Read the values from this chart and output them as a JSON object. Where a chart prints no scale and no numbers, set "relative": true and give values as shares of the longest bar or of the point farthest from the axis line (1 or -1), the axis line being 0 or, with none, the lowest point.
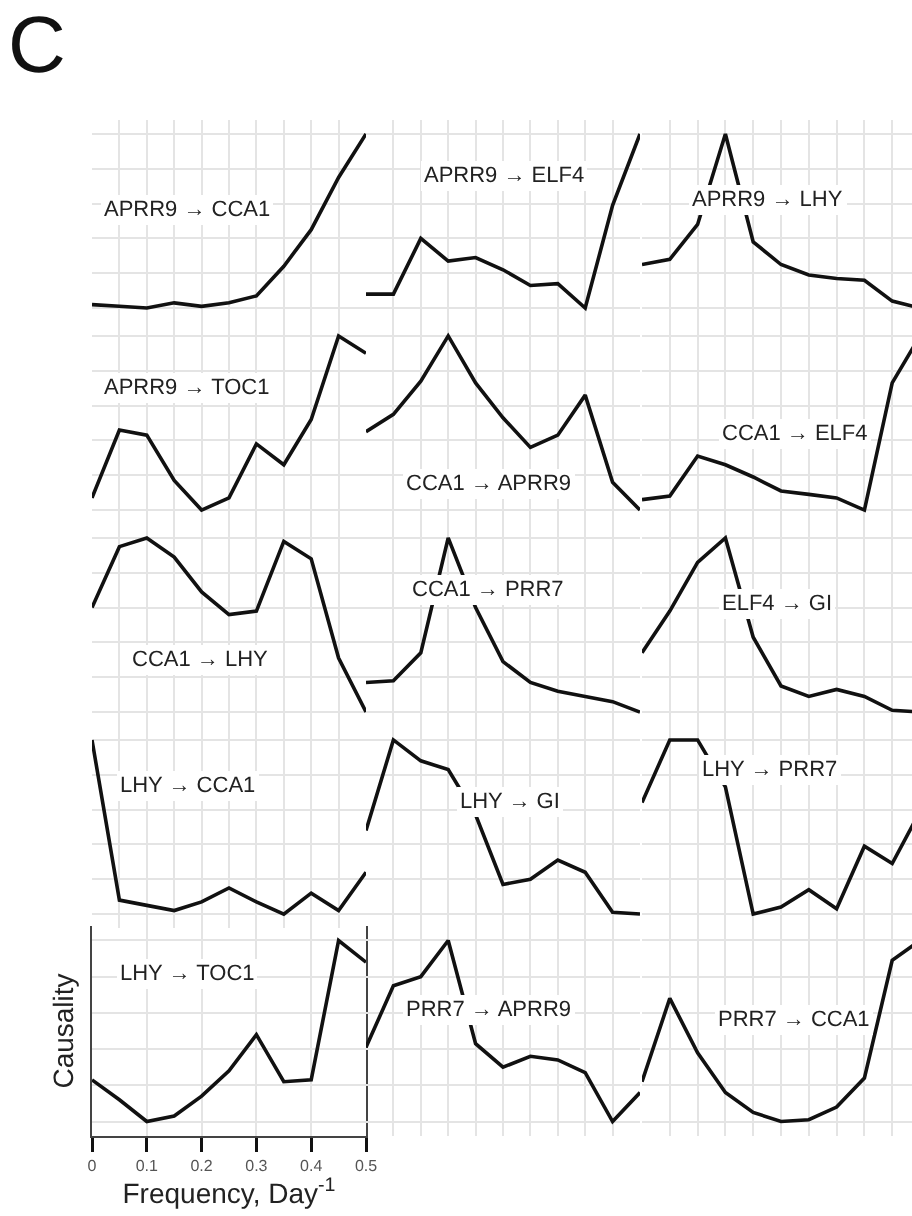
{
  "chart_data": [
    {
      "type": "line",
      "title": "C",
      "annotations": [
        "APRR9 → CCA1"
      ],
      "relative": true,
      "categories": [
        null,
        null,
        null,
        null,
        null,
        null,
        null,
        null,
        null,
        null,
        null
      ],
      "tick_labels": false,
      "grid": true,
      "series": [
        {
          "color": "#111111",
          "values": [
            0.02,
            0.01,
            0,
            0.03,
            0.01,
            0.03,
            0.07,
            0.24,
            0.45,
            0.75,
            1
          ]
        }
      ]
    },
    {
      "type": "line",
      "annotations": [
        "APRR9 → ELF4"
      ],
      "relative": true,
      "categories": [
        null,
        null,
        null,
        null,
        null,
        null,
        null,
        null,
        null,
        null,
        null
      ],
      "tick_labels": false,
      "grid": true,
      "series": [
        {
          "color": "#111111",
          "values": [
            0.08,
            0.08,
            0.4,
            0.27,
            0.29,
            0.22,
            0.13,
            0.14,
            0,
            0.59,
            1
          ]
        }
      ]
    },
    {
      "type": "line",
      "annotations": [
        "APRR9 → LHY"
      ],
      "relative": true,
      "categories": [
        null,
        null,
        null,
        null,
        null,
        null,
        null,
        null,
        null,
        null,
        null
      ],
      "tick_labels": false,
      "grid": true,
      "series": [
        {
          "color": "#111111",
          "values": [
            0.25,
            0.28,
            0.48,
            1,
            0.38,
            0.25,
            0.19,
            0.17,
            0.16,
            0.04,
            0
          ]
        }
      ]
    },
    {
      "type": "line",
      "annotations": [
        "APRR9 → TOC1"
      ],
      "relative": true,
      "categories": [
        null,
        null,
        null,
        null,
        null,
        null,
        null,
        null,
        null,
        null,
        null
      ],
      "tick_labels": false,
      "grid": true,
      "series": [
        {
          "color": "#111111",
          "values": [
            0.07,
            0.46,
            0.43,
            0.17,
            0,
            0.07,
            0.38,
            0.26,
            0.52,
            1,
            0.9
          ]
        }
      ]
    },
    {
      "type": "line",
      "annotations": [
        "CCA1 → APRR9"
      ],
      "relative": true,
      "categories": [
        null,
        null,
        null,
        null,
        null,
        null,
        null,
        null,
        null,
        null,
        null
      ],
      "tick_labels": false,
      "grid": true,
      "series": [
        {
          "color": "#111111",
          "values": [
            0.45,
            0.55,
            0.74,
            1,
            0.73,
            0.53,
            0.36,
            0.43,
            0.66,
            0.16,
            0
          ]
        }
      ]
    },
    {
      "type": "line",
      "annotations": [
        "CCA1 → ELF4"
      ],
      "relative": true,
      "categories": [
        null,
        null,
        null,
        null,
        null,
        null,
        null,
        null,
        null,
        null,
        null
      ],
      "tick_labels": false,
      "grid": true,
      "series": [
        {
          "color": "#111111",
          "values": [
            0.06,
            0.08,
            0.31,
            0.26,
            0.19,
            0.11,
            0.09,
            0.07,
            0,
            0.73,
            1
          ]
        }
      ]
    },
    {
      "type": "line",
      "annotations": [
        "CCA1 → LHY"
      ],
      "relative": true,
      "categories": [
        null,
        null,
        null,
        null,
        null,
        null,
        null,
        null,
        null,
        null,
        null
      ],
      "tick_labels": false,
      "grid": true,
      "series": [
        {
          "color": "#111111",
          "values": [
            0.6,
            0.95,
            1,
            0.89,
            0.69,
            0.56,
            0.58,
            0.98,
            0.88,
            0.31,
            0
          ]
        }
      ]
    },
    {
      "type": "line",
      "annotations": [
        "CCA1 → PRR7"
      ],
      "relative": true,
      "categories": [
        null,
        null,
        null,
        null,
        null,
        null,
        null,
        null,
        null,
        null,
        null
      ],
      "tick_labels": false,
      "grid": true,
      "series": [
        {
          "color": "#111111",
          "values": [
            0.17,
            0.18,
            0.34,
            1,
            0.6,
            0.29,
            0.17,
            0.12,
            0.09,
            0.06,
            0
          ]
        }
      ]
    },
    {
      "type": "line",
      "annotations": [
        "ELF4 → GI"
      ],
      "relative": true,
      "categories": [
        null,
        null,
        null,
        null,
        null,
        null,
        null,
        null,
        null,
        null,
        null
      ],
      "tick_labels": false,
      "grid": true,
      "series": [
        {
          "color": "#111111",
          "values": [
            0.34,
            0.58,
            0.86,
            1,
            0.43,
            0.15,
            0.09,
            0.13,
            0.09,
            0.01,
            0
          ]
        }
      ]
    },
    {
      "type": "line",
      "annotations": [
        "LHY → CCA1"
      ],
      "relative": true,
      "categories": [
        null,
        null,
        null,
        null,
        null,
        null,
        null,
        null,
        null,
        null,
        null
      ],
      "tick_labels": false,
      "grid": true,
      "series": [
        {
          "color": "#111111",
          "values": [
            1,
            0.08,
            0.05,
            0.02,
            0.07,
            0.15,
            0.07,
            0,
            0.12,
            0.02,
            0.24
          ]
        }
      ]
    },
    {
      "type": "line",
      "annotations": [
        "LHY → GI"
      ],
      "relative": true,
      "categories": [
        null,
        null,
        null,
        null,
        null,
        null,
        null,
        null,
        null,
        null,
        null
      ],
      "tick_labels": false,
      "grid": true,
      "series": [
        {
          "color": "#111111",
          "values": [
            0.48,
            1,
            0.88,
            0.83,
            0.57,
            0.17,
            0.2,
            0.31,
            0.24,
            0.01,
            0
          ]
        }
      ]
    },
    {
      "type": "line",
      "annotations": [
        "LHY → PRR7"
      ],
      "relative": true,
      "categories": [
        null,
        null,
        null,
        null,
        null,
        null,
        null,
        null,
        null,
        null,
        null
      ],
      "tick_labels": false,
      "grid": true,
      "series": [
        {
          "color": "#111111",
          "values": [
            0.64,
            1,
            1,
            0.73,
            0,
            0.04,
            0.14,
            0.03,
            0.39,
            0.29,
            0.59
          ]
        }
      ]
    },
    {
      "type": "line",
      "annotations": [
        "LHY → TOC1"
      ],
      "xlabel": "Frequency, Day$^{-1}$",
      "ylabel": "Causality",
      "relative": true,
      "x": [
        0,
        0.05,
        0.1,
        0.15,
        0.2,
        0.25,
        0.3,
        0.35,
        0.4,
        0.45,
        0.5
      ],
      "xlim": [
        0,
        0.5
      ],
      "xticks": [
        0,
        0.1,
        0.2,
        0.3,
        0.4,
        0.5
      ],
      "tick_labels": "x",
      "grid": true,
      "series": [
        {
          "color": "#111111",
          "values": [
            0.23,
            0.12,
            0,
            0.03,
            0.14,
            0.28,
            0.48,
            0.22,
            0.23,
            1,
            0.88
          ]
        }
      ]
    },
    {
      "type": "line",
      "annotations": [
        "PRR7 → APRR9"
      ],
      "relative": true,
      "categories": [
        null,
        null,
        null,
        null,
        null,
        null,
        null,
        null,
        null,
        null,
        null
      ],
      "tick_labels": false,
      "grid": true,
      "series": [
        {
          "color": "#111111",
          "values": [
            0.41,
            0.75,
            0.8,
            1,
            0.43,
            0.3,
            0.36,
            0.34,
            0.27,
            0,
            0.16
          ]
        }
      ]
    },
    {
      "type": "line",
      "annotations": [
        "PRR7 → CCA1"
      ],
      "relative": true,
      "categories": [
        null,
        null,
        null,
        null,
        null,
        null,
        null,
        null,
        null,
        null,
        null
      ],
      "tick_labels": false,
      "grid": true,
      "series": [
        {
          "color": "#111111",
          "values": [
            0.22,
            0.68,
            0.38,
            0.16,
            0.05,
            0,
            0.01,
            0.08,
            0.24,
            0.89,
            1
          ]
        }
      ]
    }
  ]
}
